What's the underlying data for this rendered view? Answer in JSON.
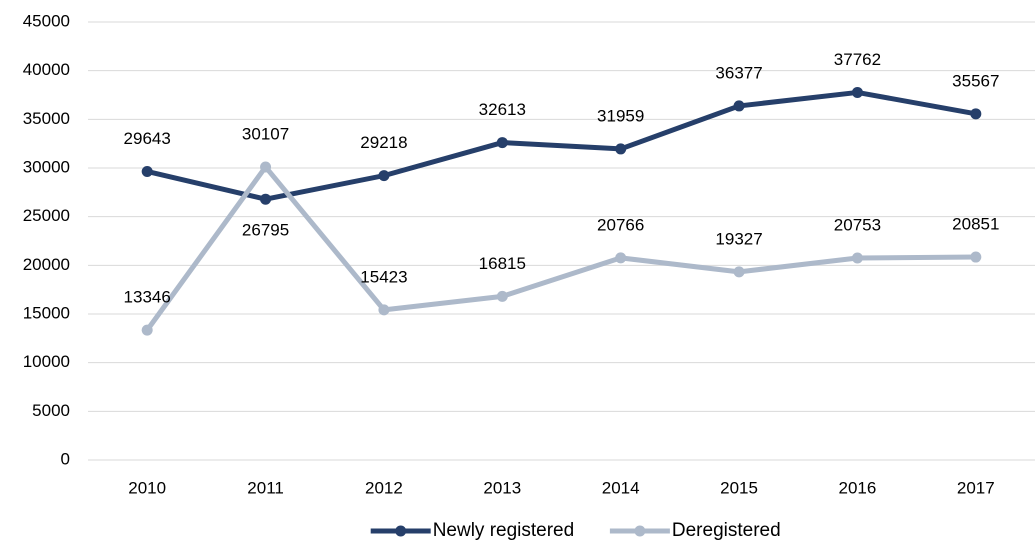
{
  "chart_data": {
    "type": "line",
    "categories": [
      "2010",
      "2011",
      "2012",
      "2013",
      "2014",
      "2015",
      "2016",
      "2017"
    ],
    "series": [
      {
        "name": "Newly registered",
        "color": "#263f6a",
        "values": [
          29643,
          26795,
          29218,
          32613,
          31959,
          36377,
          37762,
          35567
        ]
      },
      {
        "name": "Deregistered",
        "color": "#adb9ca",
        "values": [
          13346,
          30107,
          15423,
          16815,
          20766,
          19327,
          20753,
          20851
        ]
      }
    ],
    "ylim": [
      0,
      45000
    ],
    "yticks": [
      0,
      5000,
      10000,
      15000,
      20000,
      25000,
      30000,
      35000,
      40000,
      45000
    ],
    "grid": true,
    "legend": "bottom"
  }
}
